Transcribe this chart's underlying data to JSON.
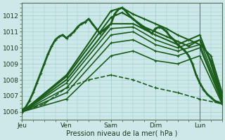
{
  "xlabel": "Pression niveau de la mer( hPa )",
  "ylim": [
    1005.5,
    1012.8
  ],
  "yticks": [
    1006,
    1007,
    1008,
    1009,
    1010,
    1011,
    1012
  ],
  "day_labels": [
    "Jeu",
    "Ven",
    "Sam",
    "Dim",
    "Lun"
  ],
  "day_positions": [
    0,
    24,
    48,
    72,
    96
  ],
  "background_color": "#cce8e8",
  "plot_bg_color": "#cce8e8",
  "grid_color": "#99cccc",
  "line_color": "#1a5c1a",
  "total_hours": 108,
  "curves": [
    {
      "name": "wavy_detailed",
      "x": [
        0,
        2,
        4,
        6,
        8,
        10,
        12,
        14,
        16,
        18,
        20,
        22,
        24,
        26,
        28,
        30,
        32,
        34,
        36,
        38,
        40,
        42,
        44,
        46,
        48,
        50,
        52,
        54,
        56,
        58,
        60,
        62,
        64,
        66,
        68,
        70,
        72,
        74,
        76,
        78,
        80,
        82,
        84,
        86,
        88,
        90,
        92,
        94,
        96,
        98,
        100,
        102,
        104,
        106,
        108
      ],
      "y": [
        1006.1,
        1006.3,
        1006.7,
        1007.2,
        1007.8,
        1008.4,
        1009.0,
        1009.6,
        1010.1,
        1010.5,
        1010.7,
        1010.8,
        1010.6,
        1010.8,
        1011.0,
        1011.3,
        1011.5,
        1011.6,
        1011.8,
        1011.5,
        1011.2,
        1010.9,
        1011.1,
        1011.3,
        1011.5,
        1012.1,
        1012.4,
        1012.5,
        1012.3,
        1012.0,
        1011.8,
        1011.6,
        1011.4,
        1011.2,
        1011.1,
        1010.9,
        1011.2,
        1011.3,
        1011.2,
        1011.0,
        1010.7,
        1010.5,
        1010.2,
        1010.0,
        1009.8,
        1009.5,
        1009.0,
        1008.3,
        1007.8,
        1007.4,
        1007.1,
        1006.9,
        1006.7,
        1006.6,
        1006.5
      ],
      "lw": 2.0,
      "dash": "solid",
      "marker": "+"
    },
    {
      "name": "c1_high",
      "x": [
        0,
        24,
        48,
        54,
        60,
        66,
        72,
        78,
        84,
        90,
        96,
        102,
        108
      ],
      "y": [
        1006.0,
        1008.3,
        1012.3,
        1012.5,
        1012.1,
        1011.8,
        1011.5,
        1011.2,
        1010.8,
        1010.5,
        1010.2,
        1009.5,
        1007.2
      ],
      "lw": 1.5,
      "dash": "solid",
      "marker": "+"
    },
    {
      "name": "c2",
      "x": [
        0,
        24,
        48,
        54,
        60,
        66,
        72,
        78,
        84,
        90,
        96,
        102,
        108
      ],
      "y": [
        1006.0,
        1008.2,
        1011.9,
        1012.2,
        1011.8,
        1011.3,
        1011.0,
        1010.7,
        1010.4,
        1010.1,
        1010.5,
        1009.2,
        1007.0
      ],
      "lw": 1.5,
      "dash": "solid",
      "marker": "+"
    },
    {
      "name": "c3",
      "x": [
        0,
        24,
        48,
        60,
        72,
        84,
        96,
        102,
        108
      ],
      "y": [
        1006.0,
        1008.0,
        1011.5,
        1011.5,
        1010.8,
        1010.2,
        1010.8,
        1009.0,
        1006.8
      ],
      "lw": 1.5,
      "dash": "solid",
      "marker": "+"
    },
    {
      "name": "c4",
      "x": [
        0,
        24,
        48,
        60,
        72,
        84,
        96,
        108
      ],
      "y": [
        1006.0,
        1007.8,
        1011.2,
        1011.3,
        1010.5,
        1010.0,
        1010.5,
        1006.8
      ],
      "lw": 1.2,
      "dash": "solid",
      "marker": "+"
    },
    {
      "name": "c5",
      "x": [
        0,
        24,
        48,
        60,
        72,
        84,
        96,
        108
      ],
      "y": [
        1006.0,
        1007.5,
        1010.8,
        1011.0,
        1010.2,
        1009.8,
        1010.2,
        1006.7
      ],
      "lw": 1.2,
      "dash": "solid",
      "marker": "+"
    },
    {
      "name": "c6_shallow",
      "x": [
        0,
        24,
        48,
        60,
        72,
        84,
        96,
        108
      ],
      "y": [
        1006.0,
        1007.2,
        1010.3,
        1010.5,
        1009.8,
        1009.5,
        1010.0,
        1006.6
      ],
      "lw": 1.2,
      "dash": "solid",
      "marker": "+"
    },
    {
      "name": "c7_lowest",
      "x": [
        0,
        24,
        48,
        60,
        72,
        84,
        96,
        108
      ],
      "y": [
        1006.0,
        1006.8,
        1009.5,
        1009.8,
        1009.2,
        1009.0,
        1009.5,
        1006.5
      ],
      "lw": 1.2,
      "dash": "solid",
      "marker": "+"
    },
    {
      "name": "c8_dashed",
      "x": [
        0,
        12,
        24,
        36,
        48,
        60,
        72,
        84,
        96,
        108
      ],
      "y": [
        1006.0,
        1006.5,
        1007.5,
        1008.0,
        1008.3,
        1008.0,
        1007.5,
        1007.2,
        1006.8,
        1006.5
      ],
      "lw": 1.2,
      "dash": "dashed",
      "marker": "+"
    }
  ],
  "vline_color": "#667788",
  "vline_x": 96
}
